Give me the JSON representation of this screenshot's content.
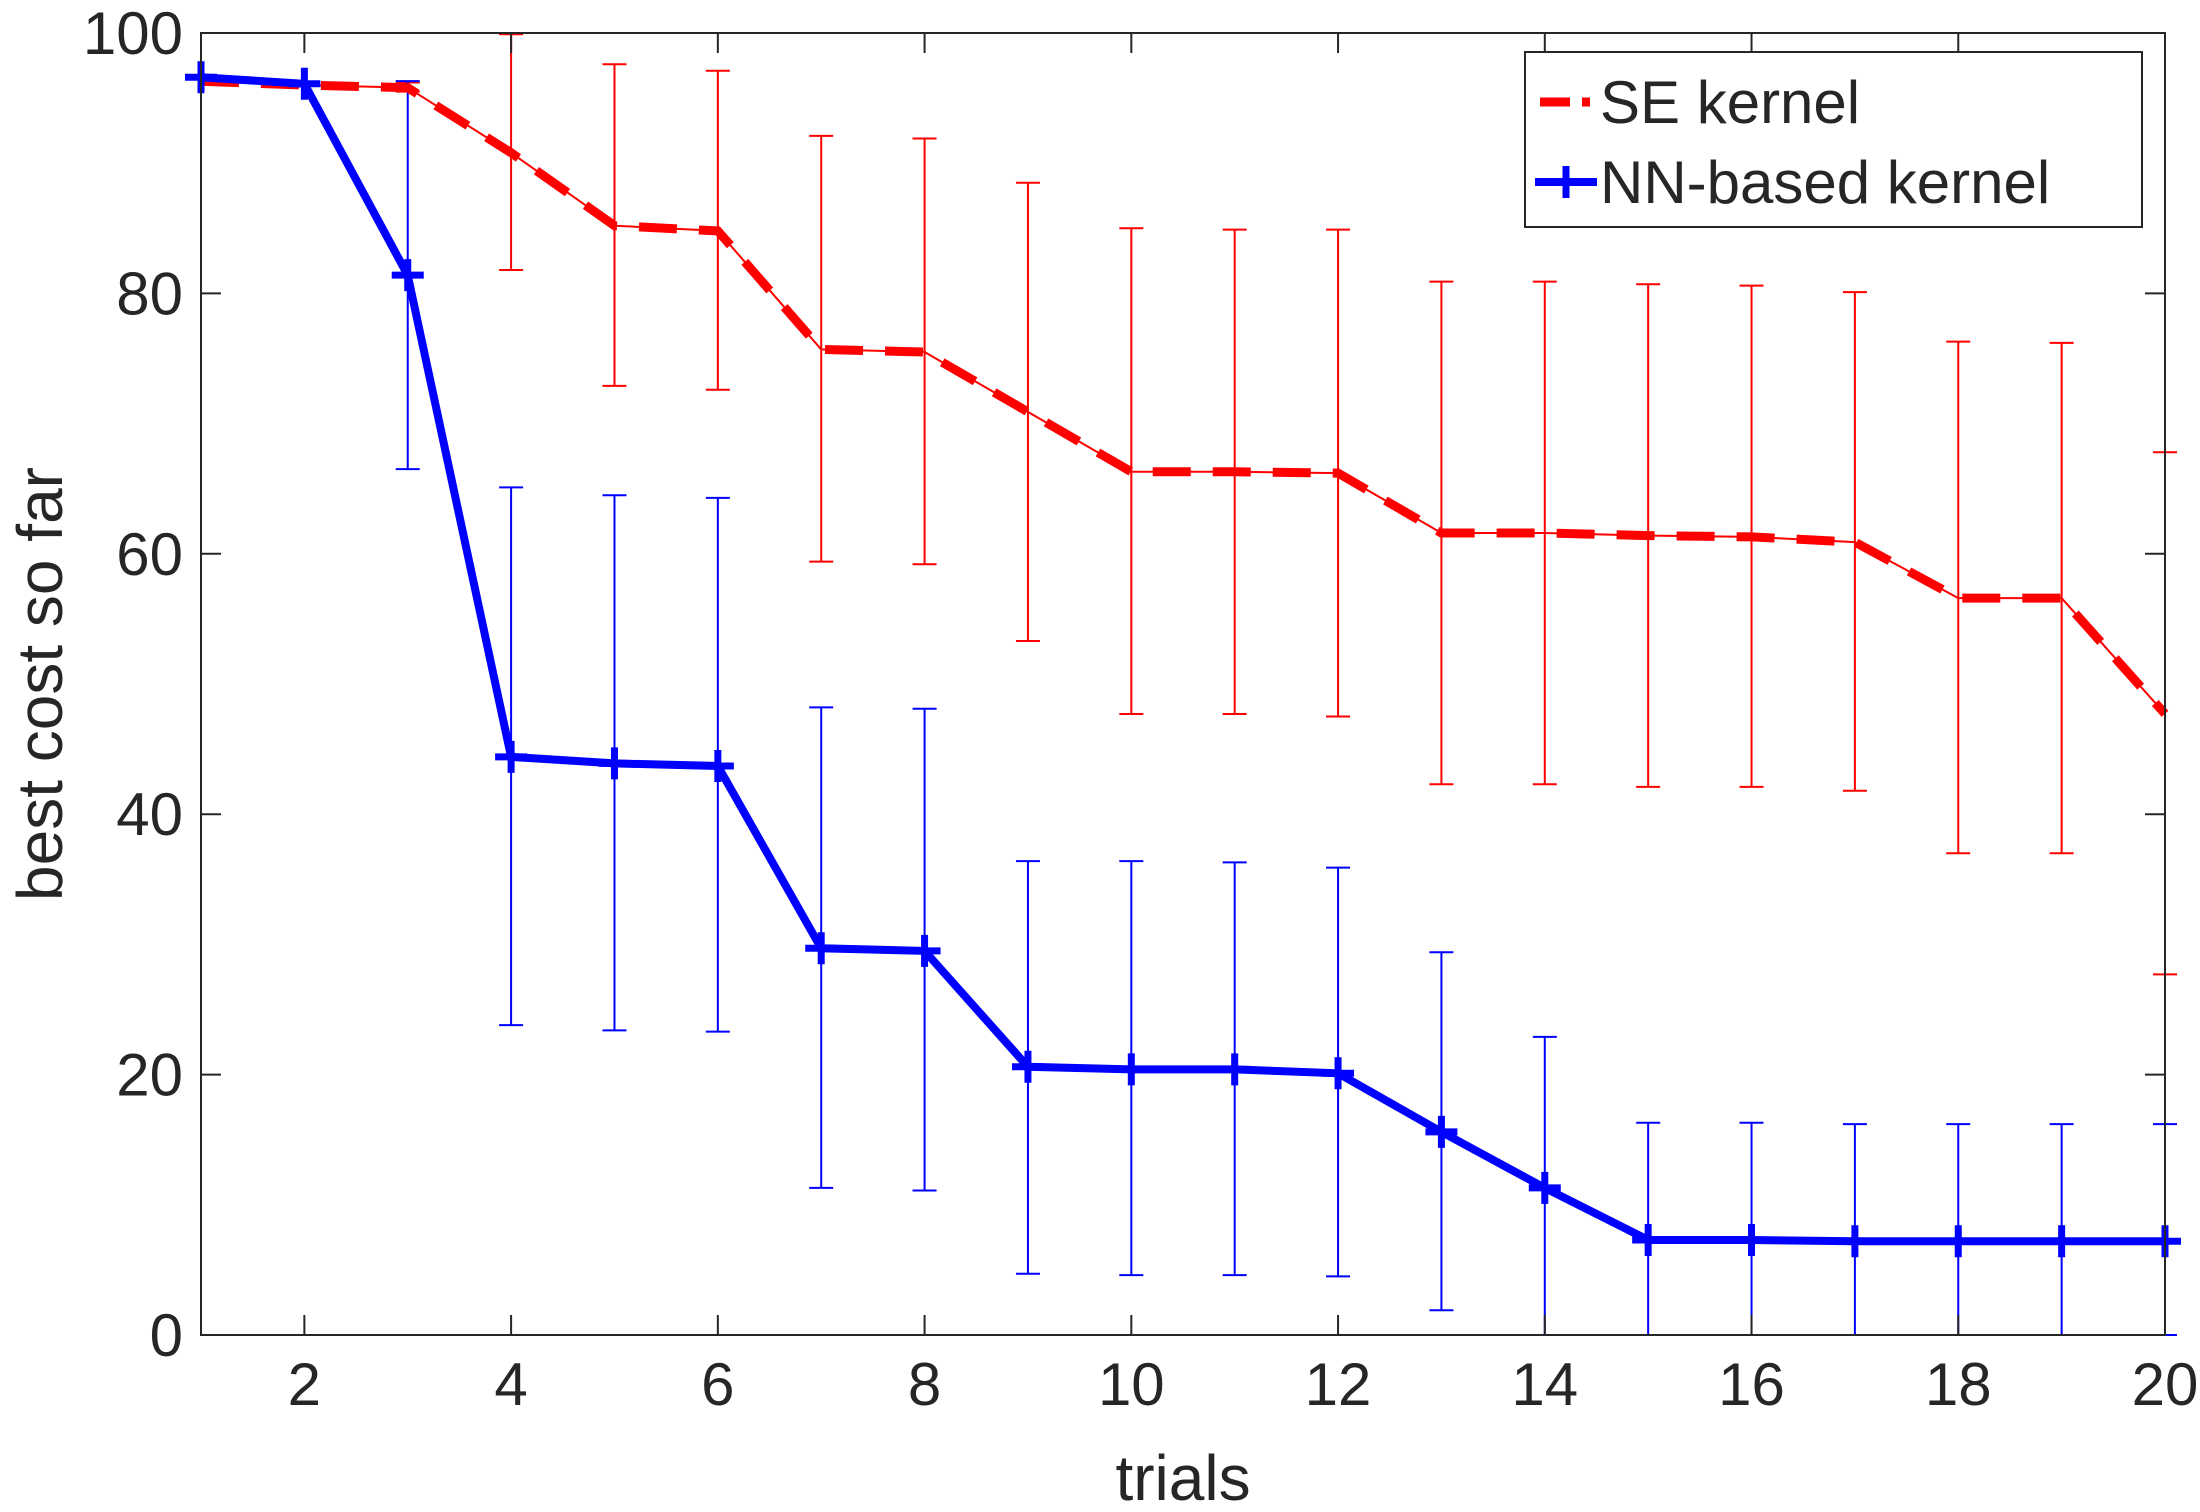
{
  "chart_data": {
    "type": "line",
    "title": "",
    "xlabel": "trials",
    "ylabel": "best cost so far",
    "xlim": [
      1,
      20
    ],
    "ylim": [
      0,
      100
    ],
    "xticks": [
      2,
      4,
      6,
      8,
      10,
      12,
      14,
      16,
      18,
      20
    ],
    "yticks": [
      0,
      20,
      40,
      60,
      80,
      100
    ],
    "grid": false,
    "legend_position": "top-right",
    "x": [
      1,
      2,
      3,
      4,
      5,
      6,
      7,
      8,
      9,
      10,
      11,
      12,
      13,
      14,
      15,
      16,
      17,
      18,
      19,
      20
    ],
    "series": [
      {
        "name": "SE kernel",
        "color": "#ff0000",
        "line_style": "dashed",
        "marker": "none",
        "values": [
          96.3,
          96.0,
          95.8,
          90.8,
          85.2,
          84.8,
          75.7,
          75.5,
          70.9,
          66.3,
          66.3,
          66.2,
          61.6,
          61.6,
          61.4,
          61.3,
          60.9,
          56.6,
          56.6,
          47.7
        ],
        "err_upper": [
          96.3,
          96.0,
          96.2,
          99.9,
          97.6,
          97.1,
          92.1,
          91.9,
          88.5,
          85.0,
          84.9,
          84.9,
          80.9,
          80.9,
          80.7,
          80.6,
          80.1,
          76.3,
          76.2,
          67.8
        ],
        "err_lower": [
          96.3,
          96.0,
          95.5,
          81.8,
          72.9,
          72.6,
          59.4,
          59.2,
          53.3,
          47.7,
          47.7,
          47.5,
          42.3,
          42.3,
          42.1,
          42.1,
          41.8,
          37.0,
          37.0,
          27.7
        ]
      },
      {
        "name": "NN-based kernel",
        "color": "#0000ff",
        "line_style": "solid",
        "marker": "plus",
        "values": [
          96.6,
          96.1,
          81.4,
          44.4,
          43.9,
          43.7,
          29.7,
          29.5,
          20.6,
          20.4,
          20.4,
          20.1,
          15.6,
          11.3,
          7.3,
          7.3,
          7.2,
          7.2,
          7.2,
          7.2
        ],
        "err_upper": [
          96.6,
          96.1,
          96.3,
          65.1,
          64.5,
          64.3,
          48.2,
          48.1,
          36.4,
          36.4,
          36.3,
          35.9,
          29.4,
          22.9,
          16.3,
          16.3,
          16.2,
          16.2,
          16.2,
          16.2
        ],
        "err_lower": [
          96.6,
          96.1,
          66.5,
          23.8,
          23.4,
          23.3,
          11.3,
          11.1,
          4.7,
          4.6,
          4.6,
          4.5,
          1.9,
          0,
          0,
          0,
          0,
          0,
          0,
          0
        ]
      }
    ]
  }
}
